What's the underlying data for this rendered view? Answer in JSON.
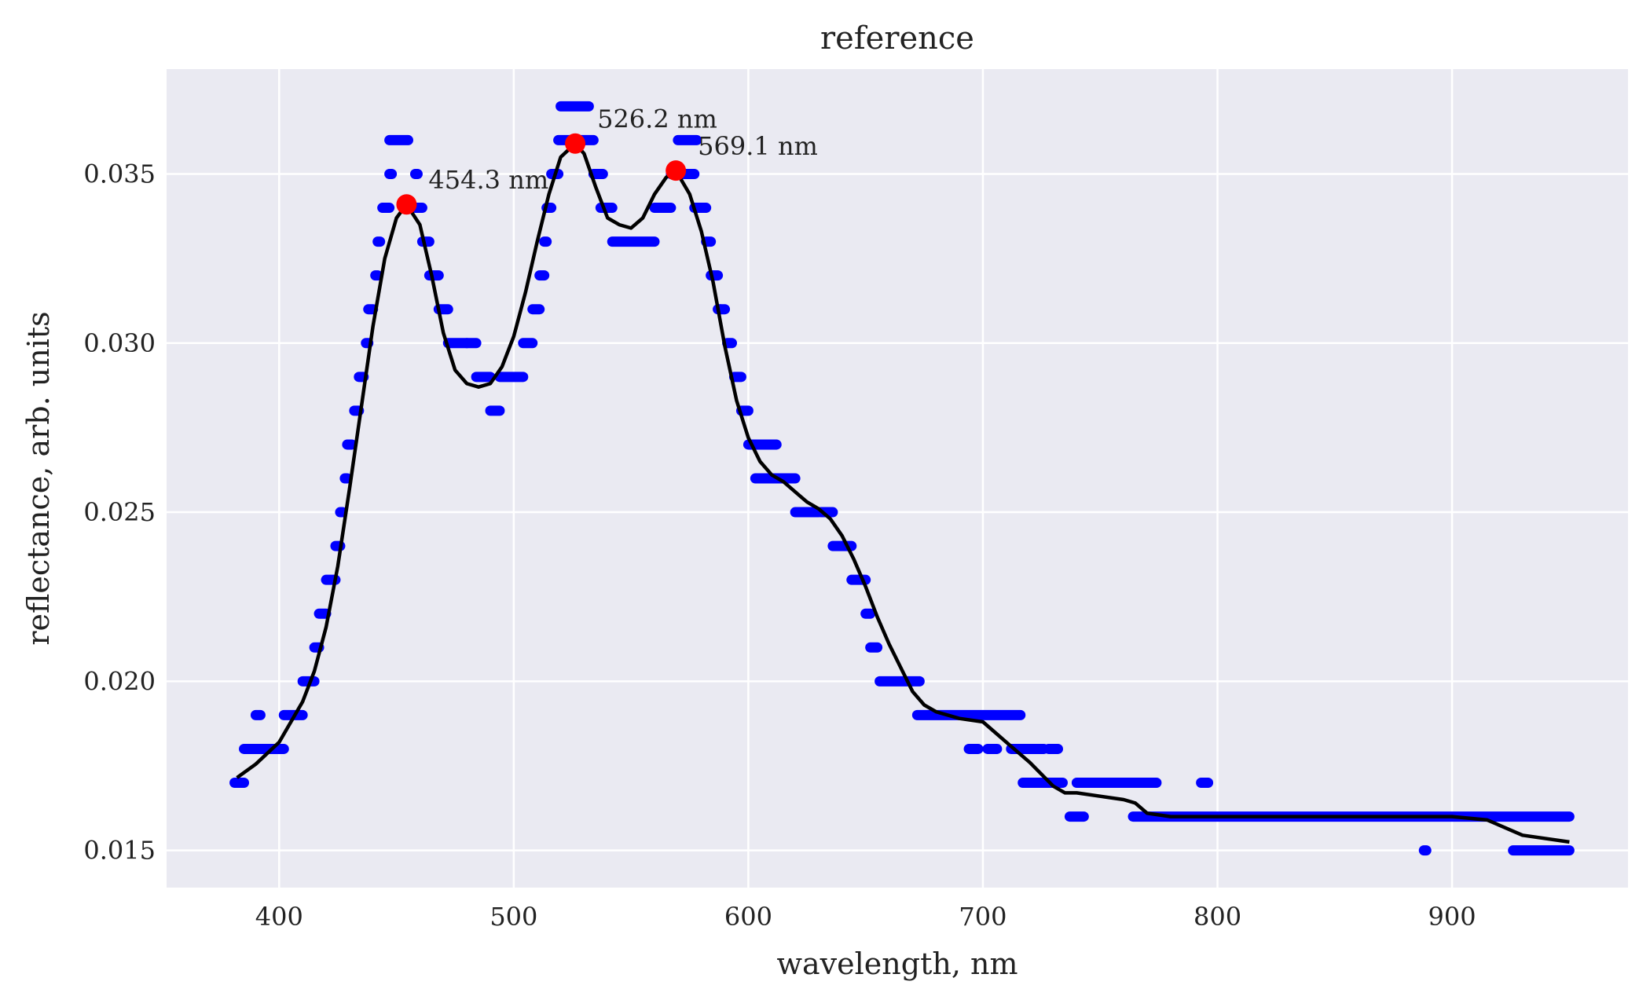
{
  "chart_data": {
    "type": "scatter",
    "title": "reference",
    "xlabel": "wavelength, nm",
    "ylabel": "reflectance, arb. units",
    "xlim": [
      352,
      975
    ],
    "ylim": [
      0.0139,
      0.0381
    ],
    "xticks": [
      400,
      500,
      600,
      700,
      800,
      900
    ],
    "xtick_labels": [
      "400",
      "500",
      "600",
      "700",
      "800",
      "900"
    ],
    "yticks": [
      0.015,
      0.02,
      0.025,
      0.03,
      0.035
    ],
    "ytick_labels": [
      "0.015",
      "0.020",
      "0.025",
      "0.030",
      "0.035"
    ],
    "grid": true,
    "colors": {
      "background": "#EAEAF2",
      "grid": "#FFFFFF",
      "points": "#0000FF",
      "smooth": "#000000",
      "peaks": "#FF0000"
    },
    "series": [
      {
        "kind": "scatter",
        "segments": [
          [
            381,
            385,
            0.017
          ],
          [
            385,
            395,
            0.018
          ],
          [
            390,
            392,
            0.019
          ],
          [
            395,
            402,
            0.018
          ],
          [
            402,
            410,
            0.019
          ],
          [
            410,
            415,
            0.02
          ],
          [
            415,
            417,
            0.021
          ],
          [
            417,
            420,
            0.022
          ],
          [
            420,
            424,
            0.023
          ],
          [
            424,
            426,
            0.024
          ],
          [
            426,
            427,
            0.025
          ],
          [
            428,
            429,
            0.026
          ],
          [
            429,
            431,
            0.027
          ],
          [
            432,
            434,
            0.028
          ],
          [
            434,
            436,
            0.029
          ],
          [
            437,
            438,
            0.03
          ],
          [
            438,
            440,
            0.031
          ],
          [
            441,
            442,
            0.032
          ],
          [
            442,
            443,
            0.033
          ],
          [
            444,
            447,
            0.034
          ],
          [
            447,
            448,
            0.035
          ],
          [
            458,
            459,
            0.035
          ],
          [
            447,
            455,
            0.036
          ],
          [
            458,
            461,
            0.034
          ],
          [
            461,
            464,
            0.033
          ],
          [
            464,
            468,
            0.032
          ],
          [
            468,
            472,
            0.031
          ],
          [
            472,
            480,
            0.03
          ],
          [
            480,
            484,
            0.03
          ],
          [
            484,
            490,
            0.029
          ],
          [
            490,
            494,
            0.028
          ],
          [
            494,
            504,
            0.029
          ],
          [
            504,
            508,
            0.03
          ],
          [
            508,
            511,
            0.031
          ],
          [
            511,
            513,
            0.032
          ],
          [
            513,
            514,
            0.033
          ],
          [
            514,
            516,
            0.034
          ],
          [
            516,
            519,
            0.035
          ],
          [
            519,
            534,
            0.036
          ],
          [
            520,
            532,
            0.037
          ],
          [
            534,
            538,
            0.035
          ],
          [
            537,
            542,
            0.034
          ],
          [
            542,
            560,
            0.033
          ],
          [
            560,
            567,
            0.034
          ],
          [
            567,
            577,
            0.035
          ],
          [
            570,
            578,
            0.036
          ],
          [
            577,
            582,
            0.034
          ],
          [
            582,
            584,
            0.033
          ],
          [
            584,
            587,
            0.032
          ],
          [
            587,
            588,
            0.031
          ],
          [
            588,
            590,
            0.031
          ],
          [
            591,
            593,
            0.03
          ],
          [
            594,
            597,
            0.029
          ],
          [
            597,
            600,
            0.028
          ],
          [
            600,
            612,
            0.027
          ],
          [
            603,
            620,
            0.026
          ],
          [
            620,
            630,
            0.025
          ],
          [
            631,
            636,
            0.025
          ],
          [
            636,
            644,
            0.024
          ],
          [
            644,
            650,
            0.023
          ],
          [
            650,
            652,
            0.022
          ],
          [
            652,
            655,
            0.021
          ],
          [
            656,
            673,
            0.02
          ],
          [
            672,
            716,
            0.019
          ],
          [
            694,
            698,
            0.018
          ],
          [
            702,
            706,
            0.018
          ],
          [
            712,
            726,
            0.018
          ],
          [
            717,
            734,
            0.017
          ],
          [
            728,
            732,
            0.018
          ],
          [
            737,
            743,
            0.016
          ],
          [
            740,
            774,
            0.017
          ],
          [
            764,
            950,
            0.016
          ],
          [
            793,
            796,
            0.017
          ],
          [
            888,
            889,
            0.015
          ],
          [
            926,
            950,
            0.015
          ]
        ]
      },
      {
        "kind": "line",
        "x": [
          382,
          390,
          400,
          410,
          415,
          420,
          425,
          430,
          435,
          440,
          445,
          450,
          454.3,
          460,
          465,
          470,
          475,
          480,
          485,
          490,
          495,
          500,
          505,
          510,
          515,
          520,
          526.2,
          530,
          535,
          540,
          545,
          550,
          555,
          560,
          565,
          569.1,
          575,
          580,
          585,
          590,
          595,
          600,
          605,
          610,
          615,
          620,
          625,
          630,
          635,
          640,
          645,
          650,
          655,
          660,
          665,
          670,
          675,
          680,
          690,
          700,
          710,
          720,
          730,
          735,
          740,
          750,
          760,
          765,
          770,
          780,
          800,
          850,
          900,
          915,
          930,
          950
        ],
        "y": [
          0.01715,
          0.01755,
          0.0182,
          0.0194,
          0.0203,
          0.0216,
          0.0234,
          0.0257,
          0.0281,
          0.0305,
          0.0325,
          0.0337,
          0.0341,
          0.0335,
          0.032,
          0.0303,
          0.0292,
          0.0288,
          0.0287,
          0.0288,
          0.0293,
          0.0302,
          0.0315,
          0.033,
          0.0344,
          0.0355,
          0.0359,
          0.0356,
          0.0346,
          0.0337,
          0.0335,
          0.0334,
          0.0337,
          0.0344,
          0.0349,
          0.0351,
          0.0344,
          0.0333,
          0.0318,
          0.0299,
          0.0283,
          0.0272,
          0.0265,
          0.0261,
          0.0259,
          0.0256,
          0.0253,
          0.0251,
          0.0248,
          0.0243,
          0.0236,
          0.0228,
          0.0219,
          0.0211,
          0.0204,
          0.0197,
          0.0193,
          0.0191,
          0.0189,
          0.0188,
          0.0182,
          0.0176,
          0.0169,
          0.0167,
          0.0167,
          0.0166,
          0.0165,
          0.0164,
          0.0161,
          0.016,
          0.016,
          0.016,
          0.016,
          0.0159,
          0.01545,
          0.01525
        ]
      },
      {
        "kind": "peaks",
        "points": [
          {
            "x": 454.3,
            "y": 0.0341,
            "label": "454.3 nm"
          },
          {
            "x": 526.2,
            "y": 0.0359,
            "label": "526.2 nm"
          },
          {
            "x": 569.1,
            "y": 0.0351,
            "label": "569.1 nm"
          }
        ]
      }
    ]
  }
}
